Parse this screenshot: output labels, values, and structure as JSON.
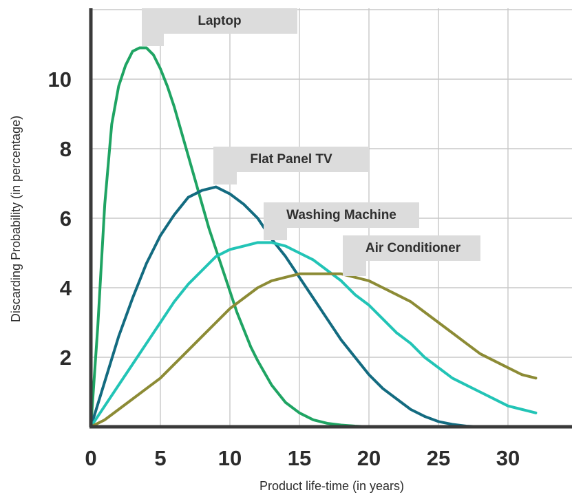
{
  "chart_data": {
    "type": "line",
    "title": "",
    "xlabel": "Product life-time (in years)",
    "ylabel": "Discarding Probability (in percentage)",
    "xlim": [
      0,
      35
    ],
    "ylim": [
      0,
      12
    ],
    "grid": true,
    "x_ticks": [
      "0",
      "5",
      "10",
      "15",
      "20",
      "25",
      "30"
    ],
    "y_ticks": [
      "2",
      "4",
      "6",
      "8",
      "10"
    ],
    "series": [
      {
        "name": "Laptop",
        "color": "#1fa463",
        "x": [
          0,
          0.5,
          1,
          1.5,
          2,
          2.5,
          3,
          3.5,
          4,
          4.5,
          5,
          5.5,
          6,
          6.5,
          7,
          7.5,
          8,
          8.5,
          9,
          9.5,
          10,
          10.5,
          11,
          11.5,
          12,
          13,
          14,
          15,
          16,
          17,
          18,
          19,
          20
        ],
        "y": [
          0,
          2.9,
          6.4,
          8.7,
          9.8,
          10.4,
          10.8,
          10.9,
          10.9,
          10.7,
          10.3,
          9.8,
          9.2,
          8.5,
          7.8,
          7.1,
          6.4,
          5.7,
          5.1,
          4.5,
          3.9,
          3.3,
          2.8,
          2.3,
          1.9,
          1.2,
          0.7,
          0.4,
          0.2,
          0.1,
          0.05,
          0.02,
          0
        ]
      },
      {
        "name": "Flat Panel TV",
        "color": "#136b80",
        "x": [
          0,
          1,
          2,
          3,
          4,
          5,
          6,
          7,
          8,
          9,
          10,
          11,
          12,
          13,
          14,
          15,
          16,
          17,
          18,
          19,
          20,
          21,
          22,
          23,
          24,
          25,
          26,
          27,
          28
        ],
        "y": [
          0,
          1.3,
          2.6,
          3.7,
          4.7,
          5.5,
          6.1,
          6.6,
          6.8,
          6.9,
          6.7,
          6.4,
          6.0,
          5.4,
          4.9,
          4.3,
          3.7,
          3.1,
          2.5,
          2.0,
          1.5,
          1.1,
          0.8,
          0.5,
          0.3,
          0.15,
          0.07,
          0.02,
          0
        ]
      },
      {
        "name": "Washing Machine",
        "color": "#22c4b6",
        "x": [
          0,
          1,
          2,
          3,
          4,
          5,
          6,
          7,
          8,
          9,
          10,
          11,
          12,
          13,
          14,
          15,
          16,
          17,
          18,
          19,
          20,
          21,
          22,
          23,
          24,
          25,
          26,
          27,
          28,
          29,
          30,
          31,
          32
        ],
        "y": [
          0,
          0.6,
          1.2,
          1.8,
          2.4,
          3.0,
          3.6,
          4.1,
          4.5,
          4.9,
          5.1,
          5.2,
          5.3,
          5.3,
          5.2,
          5.0,
          4.8,
          4.5,
          4.2,
          3.8,
          3.5,
          3.1,
          2.7,
          2.4,
          2.0,
          1.7,
          1.4,
          1.2,
          1.0,
          0.8,
          0.6,
          0.5,
          0.4
        ]
      },
      {
        "name": "Air Conditioner",
        "color": "#8c8b35",
        "x": [
          0,
          1,
          2,
          3,
          4,
          5,
          6,
          7,
          8,
          9,
          10,
          11,
          12,
          13,
          14,
          15,
          16,
          17,
          18,
          19,
          20,
          21,
          22,
          23,
          24,
          25,
          26,
          27,
          28,
          29,
          30,
          31,
          32
        ],
        "y": [
          0,
          0.2,
          0.5,
          0.8,
          1.1,
          1.4,
          1.8,
          2.2,
          2.6,
          3.0,
          3.4,
          3.7,
          4.0,
          4.2,
          4.3,
          4.4,
          4.4,
          4.4,
          4.4,
          4.3,
          4.2,
          4.0,
          3.8,
          3.6,
          3.3,
          3.0,
          2.7,
          2.4,
          2.1,
          1.9,
          1.7,
          1.5,
          1.4
        ]
      }
    ],
    "callouts": [
      {
        "series": "Laptop",
        "text": "Laptop"
      },
      {
        "series": "Flat Panel TV",
        "text": "Flat Panel TV"
      },
      {
        "series": "Washing Machine",
        "text": "Washing Machine"
      },
      {
        "series": "Air Conditioner",
        "text": "Air Conditioner"
      }
    ],
    "colors": {
      "grid": "#c8c8c8",
      "axis": "#3a3a3a",
      "callout_bg": "#dcdcdc"
    }
  }
}
